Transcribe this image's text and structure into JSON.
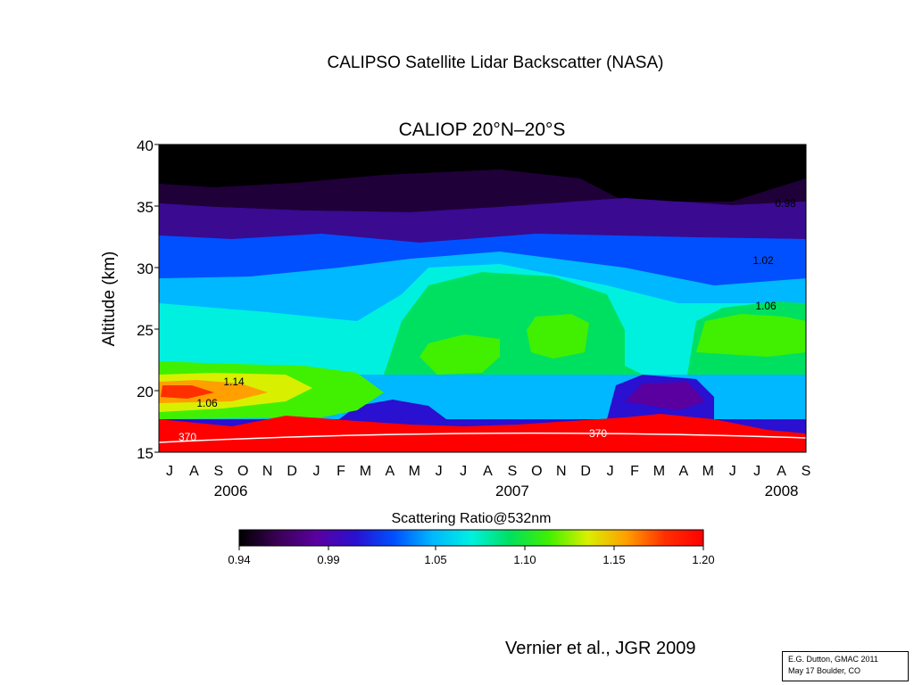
{
  "slide": {
    "title": "CALIPSO Satellite Lidar Backscatter  (NASA)",
    "citation": "Vernier et al., JGR 2009",
    "footer_line1": "E.G. Dutton, GMAC 2011",
    "footer_line2": "May 17  Boulder, CO"
  },
  "chart_data": {
    "type": "heatmap",
    "title": "CALIOP 20°N–20°S",
    "ylabel": "Altitude (km)",
    "xlabel": "",
    "ylim": [
      15,
      40
    ],
    "yticks": [
      15,
      20,
      25,
      30,
      35,
      40
    ],
    "x_months": [
      "J",
      "A",
      "S",
      "O",
      "N",
      "D",
      "J",
      "F",
      "M",
      "A",
      "M",
      "J",
      "J",
      "A",
      "S",
      "O",
      "N",
      "D",
      "J",
      "F",
      "M",
      "A",
      "M",
      "J",
      "J",
      "A",
      "S"
    ],
    "x_years": [
      {
        "label": "2006",
        "month_index": 2.5
      },
      {
        "label": "2007",
        "month_index": 14
      },
      {
        "label": "2008",
        "month_index": 25
      }
    ],
    "colorbar": {
      "label": "Scattering Ratio@532nm",
      "min": 0.94,
      "max": 1.2,
      "ticks": [
        "0.94",
        "0.99",
        "1.05",
        "1.10",
        "1.15",
        "1.20"
      ],
      "colors": [
        "#000000",
        "#3a0055",
        "#5a00a0",
        "#2a10d0",
        "#0050ff",
        "#00b8ff",
        "#00f0e0",
        "#00e060",
        "#40f000",
        "#d8f000",
        "#ffa000",
        "#ff3000",
        "#ff0000"
      ]
    },
    "contour_labels": [
      "0.98",
      "1.02",
      "1.06",
      "1.14",
      "1.06",
      "370"
    ],
    "field_description_levels": [
      {
        "altitude_km": 38,
        "ratio": 0.94
      },
      {
        "altitude_km": 33,
        "ratio": 0.98
      },
      {
        "altitude_km": 30,
        "ratio": 1.02
      },
      {
        "altitude_km": 26,
        "ratio": 1.06
      },
      {
        "altitude_km": 23,
        "ratio": 1.08
      },
      {
        "altitude_km": 18,
        "ratio": 1.0
      },
      {
        "altitude_km": 16,
        "ratio": 1.2
      }
    ]
  }
}
